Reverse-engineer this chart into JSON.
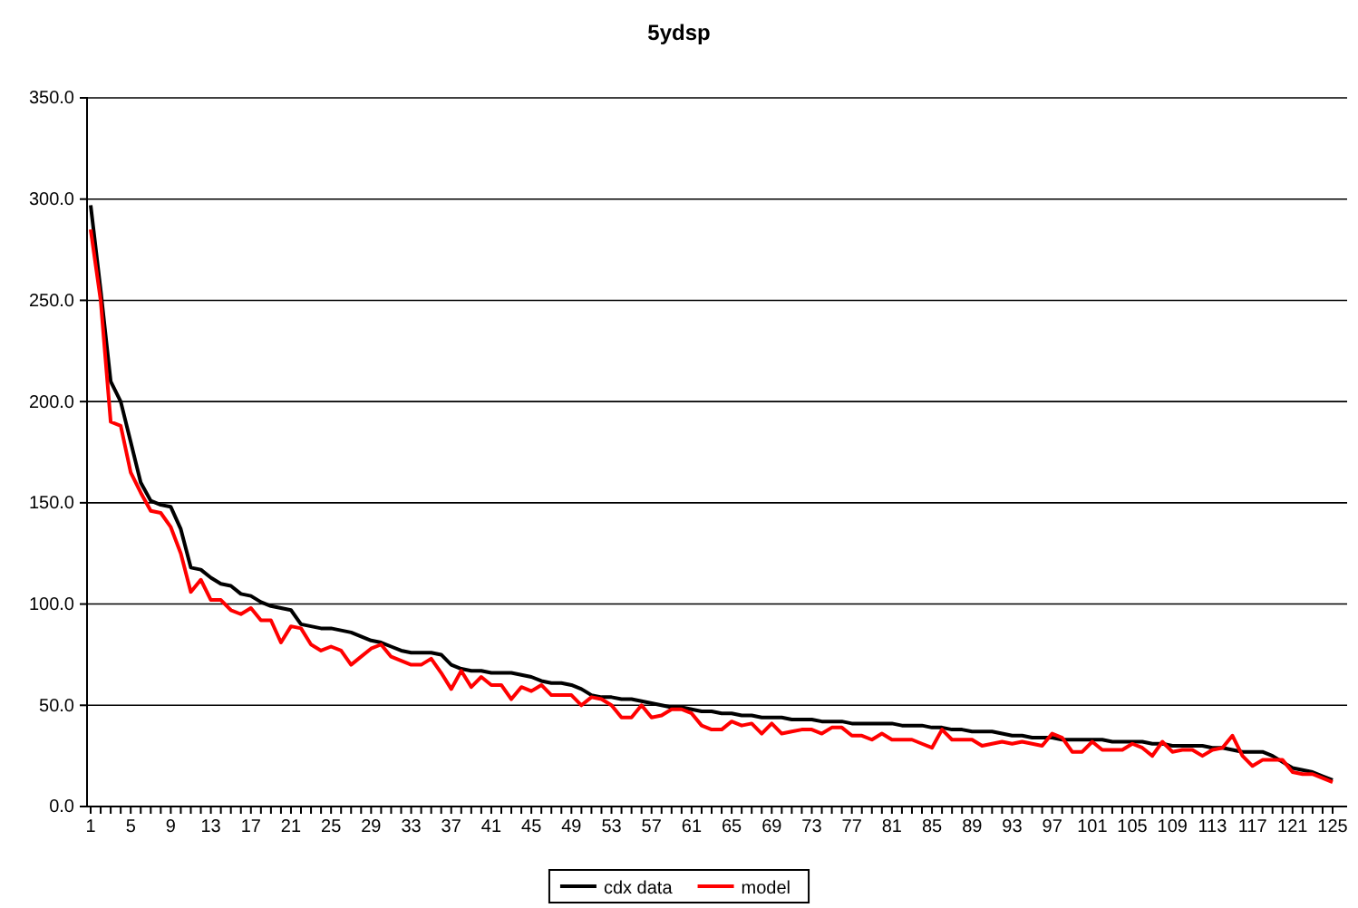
{
  "chart_data": {
    "type": "line",
    "title": "5ydsp",
    "categories": [
      "1",
      null,
      null,
      null,
      "5",
      null,
      null,
      null,
      "9",
      null,
      null,
      null,
      "13",
      null,
      null,
      null,
      "17",
      null,
      null,
      null,
      "21",
      null,
      null,
      null,
      "25",
      null,
      null,
      null,
      "29",
      null,
      null,
      null,
      "33",
      null,
      null,
      null,
      "37",
      null,
      null,
      null,
      "41",
      null,
      null,
      null,
      "45",
      null,
      null,
      null,
      "49",
      null,
      null,
      null,
      "53",
      null,
      null,
      null,
      "57",
      null,
      null,
      null,
      "61",
      null,
      null,
      null,
      "65",
      null,
      null,
      null,
      "69",
      null,
      null,
      null,
      "73",
      null,
      null,
      null,
      "77",
      null,
      null,
      null,
      "81",
      null,
      null,
      null,
      "85",
      null,
      null,
      null,
      "89",
      null,
      null,
      null,
      "93",
      null,
      null,
      null,
      "97",
      null,
      null,
      null,
      "101",
      null,
      null,
      null,
      "105",
      null,
      null,
      null,
      "109",
      null,
      null,
      null,
      "113",
      null,
      null,
      null,
      "117",
      null,
      null,
      null,
      "121",
      null,
      null,
      null,
      "125"
    ],
    "series": [
      {
        "name": "cdx data",
        "color": "#000000",
        "values": [
          297,
          255,
          210,
          200,
          180,
          160,
          151,
          149,
          148,
          137,
          118,
          117,
          113,
          110,
          109,
          105,
          104,
          101,
          99,
          98,
          97,
          90,
          89,
          88,
          88,
          87,
          86,
          84,
          82,
          81,
          79,
          77,
          76,
          76,
          76,
          75,
          70,
          68,
          67,
          67,
          66,
          66,
          66,
          65,
          64,
          62,
          61,
          61,
          60,
          58,
          55,
          54,
          54,
          53,
          53,
          52,
          51,
          50,
          49,
          49,
          48,
          47,
          47,
          46,
          46,
          45,
          45,
          44,
          44,
          44,
          43,
          43,
          43,
          42,
          42,
          42,
          41,
          41,
          41,
          41,
          41,
          40,
          40,
          40,
          39,
          39,
          38,
          38,
          37,
          37,
          37,
          36,
          35,
          35,
          34,
          34,
          34,
          33,
          33,
          33,
          33,
          33,
          32,
          32,
          32,
          32,
          31,
          31,
          30,
          30,
          30,
          30,
          29,
          29,
          28,
          27,
          27,
          27,
          25,
          22,
          19,
          18,
          17,
          15,
          13
        ]
      },
      {
        "name": "model",
        "color": "#ff0000",
        "values": [
          285,
          250,
          190,
          188,
          165,
          155,
          146,
          145,
          138,
          125,
          106,
          112,
          102,
          102,
          97,
          95,
          98,
          92,
          92,
          81,
          89,
          88,
          80,
          77,
          79,
          77,
          70,
          74,
          78,
          80,
          74,
          72,
          70,
          70,
          73,
          66,
          58,
          67,
          59,
          64,
          60,
          60,
          53,
          59,
          57,
          60,
          55,
          55,
          55,
          50,
          54,
          53,
          50,
          44,
          44,
          50,
          44,
          45,
          48,
          48,
          46,
          40,
          38,
          38,
          42,
          40,
          41,
          36,
          41,
          36,
          37,
          38,
          38,
          36,
          39,
          39,
          35,
          35,
          33,
          36,
          33,
          33,
          33,
          31,
          29,
          38,
          33,
          33,
          33,
          30,
          31,
          32,
          31,
          32,
          31,
          30,
          36,
          34,
          27,
          27,
          32,
          28,
          28,
          28,
          31,
          29,
          25,
          32,
          27,
          28,
          28,
          25,
          28,
          29,
          35,
          25,
          20,
          23,
          23,
          23,
          17,
          16,
          16,
          14,
          12
        ]
      }
    ],
    "ylim": [
      0,
      350
    ],
    "yticks": [
      {
        "value": 0,
        "label": "0.0"
      },
      {
        "value": 50,
        "label": "50.0"
      },
      {
        "value": 100,
        "label": "100.0"
      },
      {
        "value": 150,
        "label": "150.0"
      },
      {
        "value": 200,
        "label": "200.0"
      },
      {
        "value": 250,
        "label": "250.0"
      },
      {
        "value": 300,
        "label": "300.0"
      },
      {
        "value": 350,
        "label": "350.0"
      }
    ],
    "grid": "y",
    "legend": "bottom",
    "marker": "none",
    "line_style": "solid"
  }
}
